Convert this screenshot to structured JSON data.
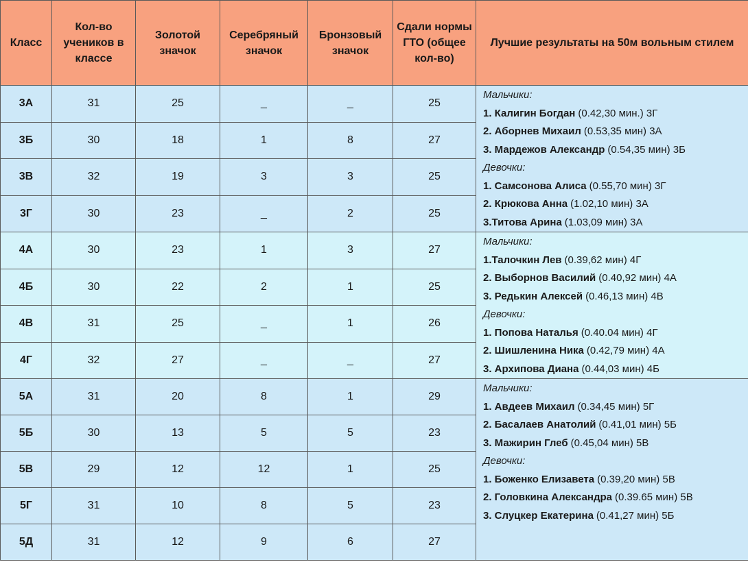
{
  "table": {
    "header": [
      "Класс",
      "Кол-во учеников в классе",
      "Золотой значок",
      "Серебряный значок",
      "Бронзовый значок",
      "Сдали нормы ГТО (общее кол-во)",
      "Лучшие результаты на 50м вольным стилем"
    ],
    "groups": [
      {
        "rows": [
          [
            "3А",
            31,
            25,
            "_",
            "_",
            25
          ],
          [
            "3Б",
            30,
            18,
            1,
            8,
            27
          ],
          [
            "3В",
            32,
            19,
            3,
            3,
            25
          ],
          [
            "3Г",
            30,
            23,
            "_",
            2,
            25
          ]
        ],
        "results": {
          "boys_label": "Мальчики:",
          "boys": [
            {
              "name": "1. Калигин Богдан",
              "detail": "(0.42,30 мин.) 3Г"
            },
            {
              "name": "2. Аборнев Михаил",
              "detail": "(0.53,35 мин) 3А"
            },
            {
              "name": "3. Мардежов Александр",
              "detail": "(0.54,35 мин) 3Б"
            }
          ],
          "girls_label": "Девочки:",
          "girls": [
            {
              "name": "1. Самсонова Алиса",
              "detail": "(0.55,70 мин) 3Г"
            },
            {
              "name": "2. Крюкова Анна",
              "detail": "(1.02,10 мин) 3А"
            },
            {
              "name": "3.Титова Арина",
              "detail": "(1.03,09 мин) 3А"
            }
          ]
        }
      },
      {
        "rows": [
          [
            "4А",
            30,
            23,
            1,
            3,
            27
          ],
          [
            "4Б",
            30,
            22,
            2,
            1,
            25
          ],
          [
            "4В",
            31,
            25,
            "_",
            1,
            26
          ],
          [
            "4Г",
            32,
            27,
            "_",
            "_",
            27
          ]
        ],
        "results": {
          "boys_label": "Мальчики:",
          "boys": [
            {
              "name": "1.Талочкин Лев",
              "detail": "(0.39,62 мин) 4Г"
            },
            {
              "name": "2. Выборнов Василий",
              "detail": "(0.40,92 мин) 4А"
            },
            {
              "name": "3. Редькин Алексей",
              "detail": "(0.46,13 мин) 4В"
            }
          ],
          "girls_label": "Девочки:",
          "girls": [
            {
              "name": "1. Попова Наталья",
              "detail": "(0.40.04 мин) 4Г"
            },
            {
              "name": "2. Шишленина Ника",
              "detail": "(0.42,79 мин) 4А"
            },
            {
              "name": "3. Архипова Диана",
              "detail": "(0.44,03 мин) 4Б"
            }
          ]
        }
      },
      {
        "rows": [
          [
            "5А",
            31,
            20,
            8,
            1,
            29
          ],
          [
            "5Б",
            30,
            13,
            5,
            5,
            23
          ],
          [
            "5В",
            29,
            12,
            12,
            1,
            25
          ],
          [
            "5Г",
            31,
            10,
            8,
            5,
            23
          ],
          [
            "5Д",
            31,
            12,
            9,
            6,
            27
          ]
        ],
        "results": {
          "boys_label": "Мальчики:",
          "boys": [
            {
              "name": "1. Авдеев Михаил",
              "detail": "(0.34,45 мин) 5Г"
            },
            {
              "name": "2. Басалаев Анатолий",
              "detail": "(0.41,01 мин) 5Б"
            },
            {
              "name": "3. Мажирин Глеб",
              "detail": "(0.45,04 мин) 5В"
            }
          ],
          "girls_label": "Девочки:",
          "girls": [
            {
              "name": "1. Боженко Елизавета",
              "detail": "(0.39,20 мин) 5В"
            },
            {
              "name": "2. Головкина Александра",
              "detail": "(0.39.65 мин) 5В"
            },
            {
              "name": "3. Слуцкер Екатерина",
              "detail": "(0.41,27 мин) 5Б"
            }
          ]
        }
      }
    ]
  }
}
